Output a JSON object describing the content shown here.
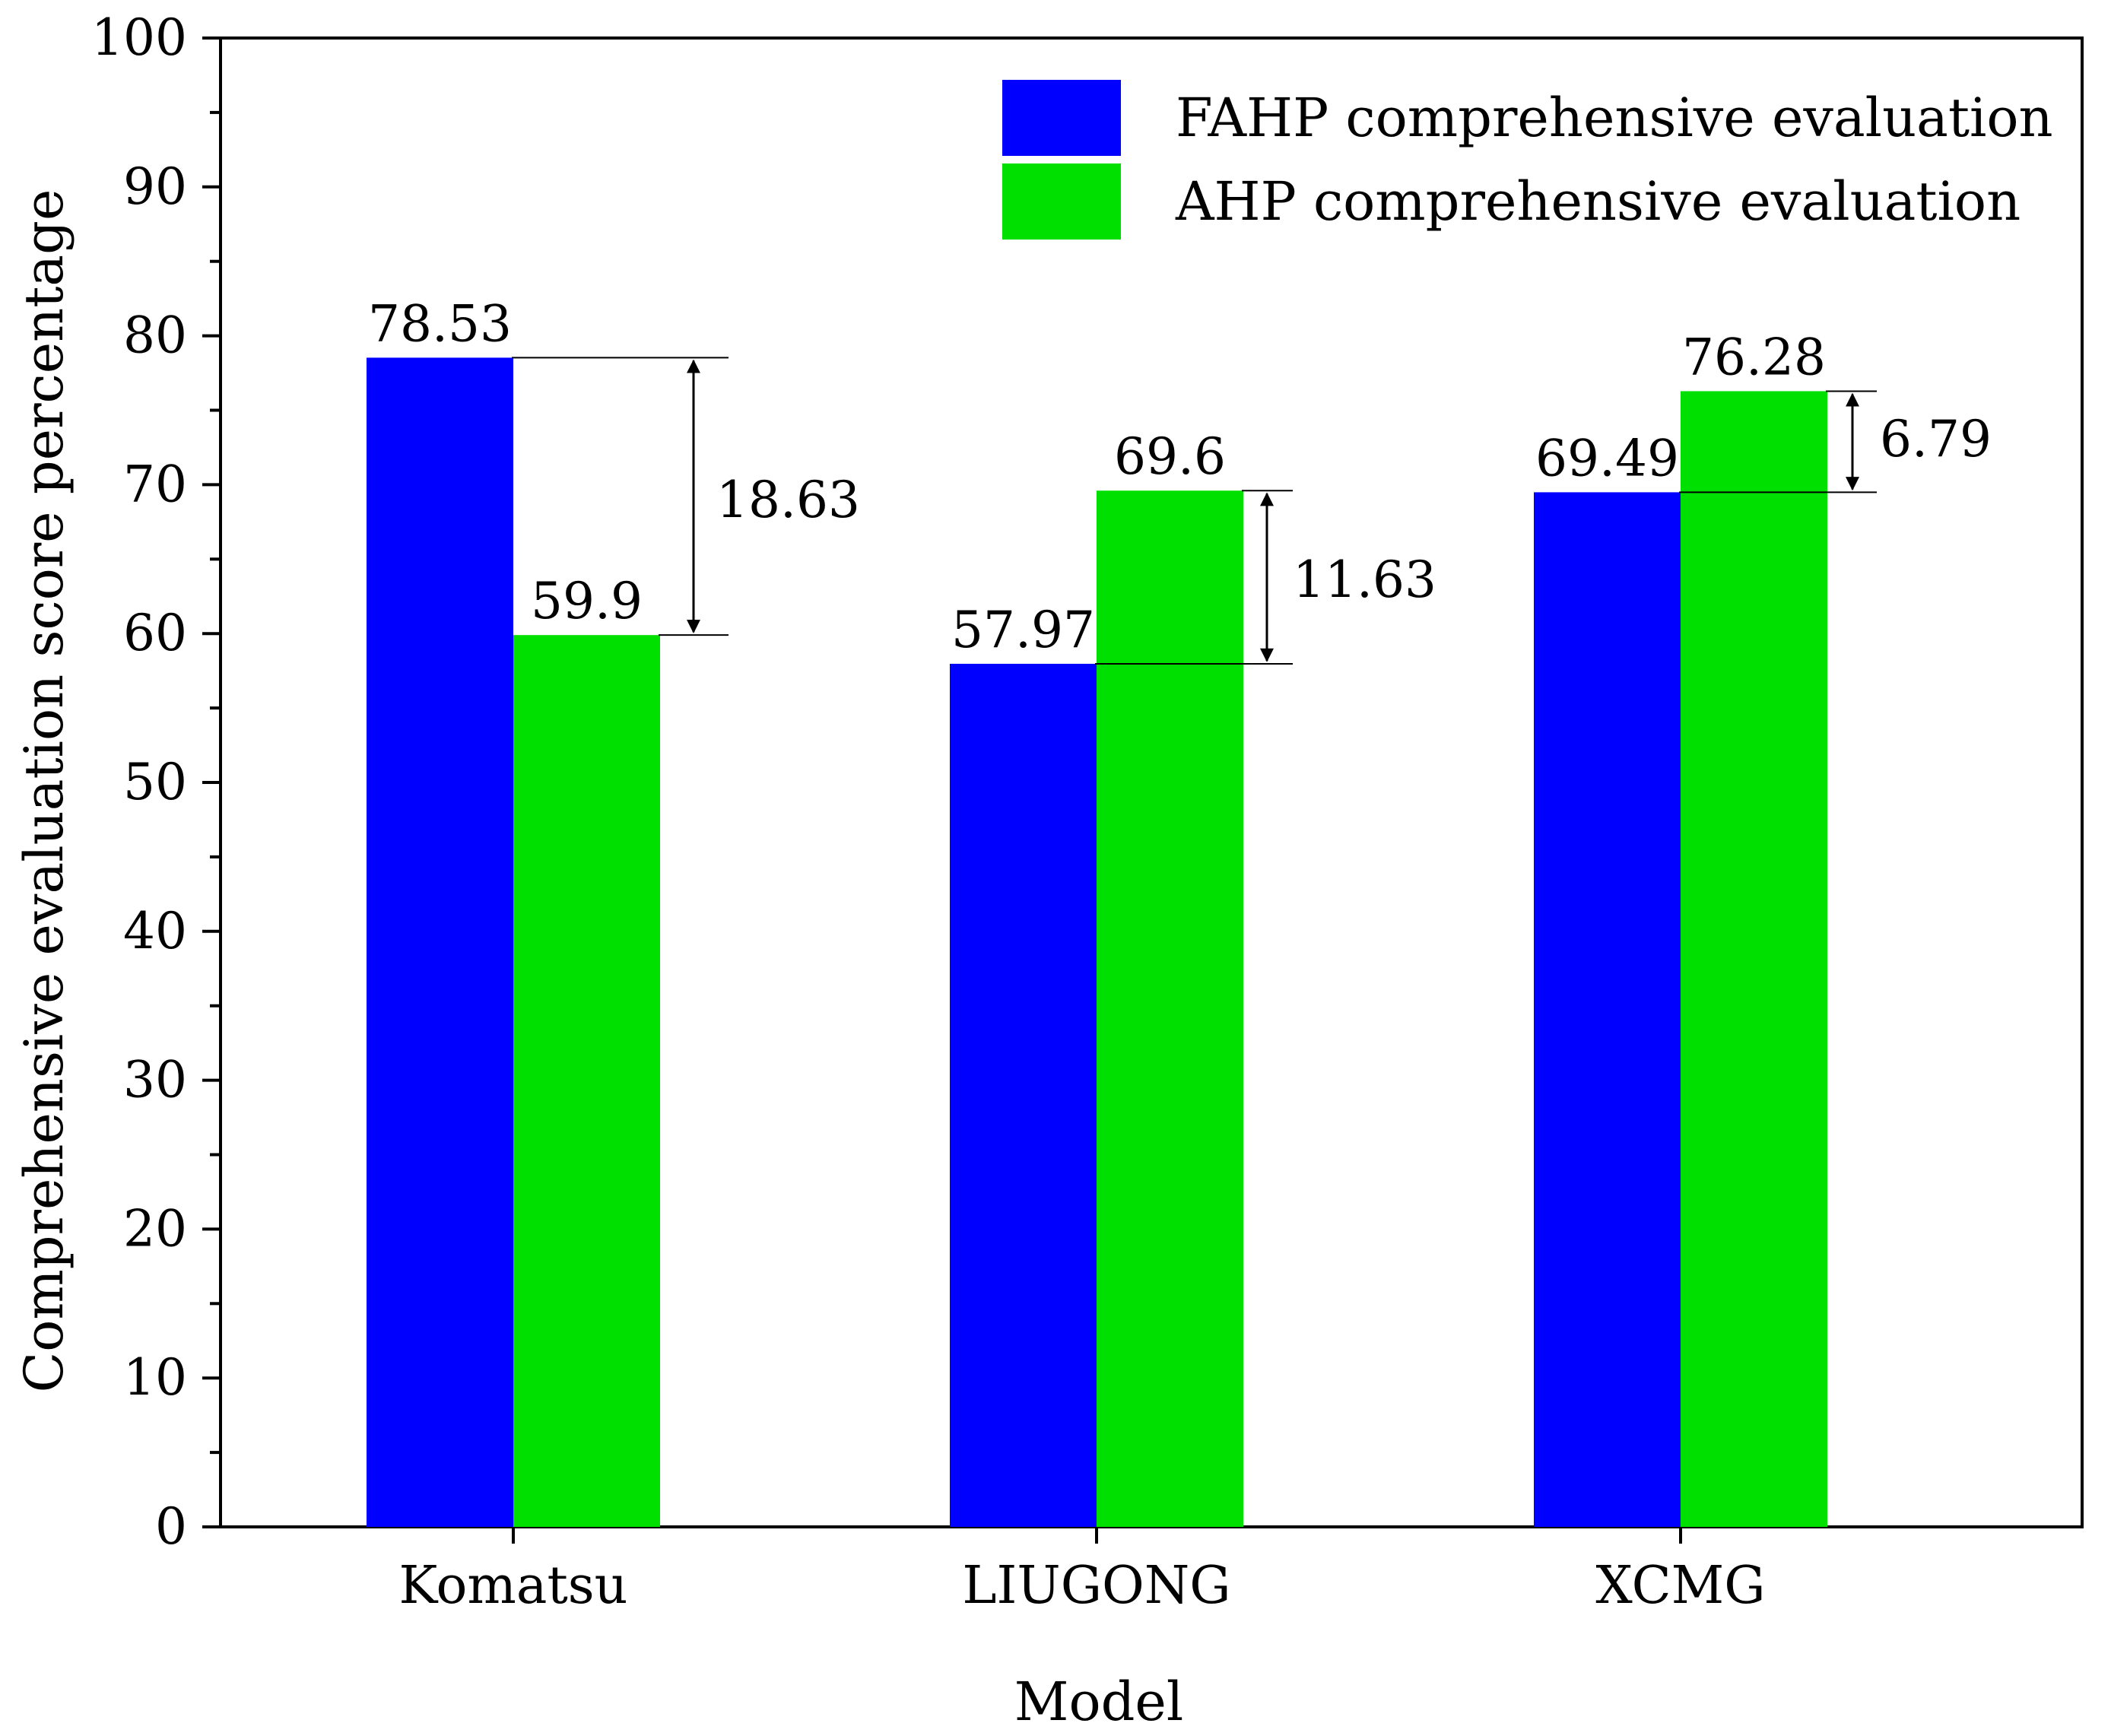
{
  "chart_data": {
    "type": "bar",
    "title": "",
    "xlabel": "Model",
    "ylabel": "Comprehensive evaluation score percentage",
    "ylim": [
      0,
      100
    ],
    "yticks": [
      "0",
      "10",
      "20",
      "30",
      "40",
      "50",
      "60",
      "70",
      "80",
      "90",
      "100"
    ],
    "categories": [
      "Komatsu",
      "LIUGONG",
      "XCMG"
    ],
    "series": [
      {
        "name": "FAHP comprehensive evaluation",
        "color": "#0000ff",
        "values": [
          78.53,
          57.97,
          69.49
        ],
        "labels": [
          "78.53",
          "57.97",
          "69.49"
        ]
      },
      {
        "name": "AHP comprehensive evaluation",
        "color": "#00e000",
        "values": [
          59.9,
          69.6,
          76.28
        ],
        "labels": [
          "59.9",
          "69.6",
          "76.28"
        ]
      }
    ],
    "differences": [
      {
        "category": "Komatsu",
        "value": 18.63,
        "label": "18.63"
      },
      {
        "category": "LIUGONG",
        "value": 11.63,
        "label": "11.63"
      },
      {
        "category": "XCMG",
        "value": 6.79,
        "label": "6.79"
      }
    ],
    "legend_position": "top-right",
    "grid": false
  }
}
